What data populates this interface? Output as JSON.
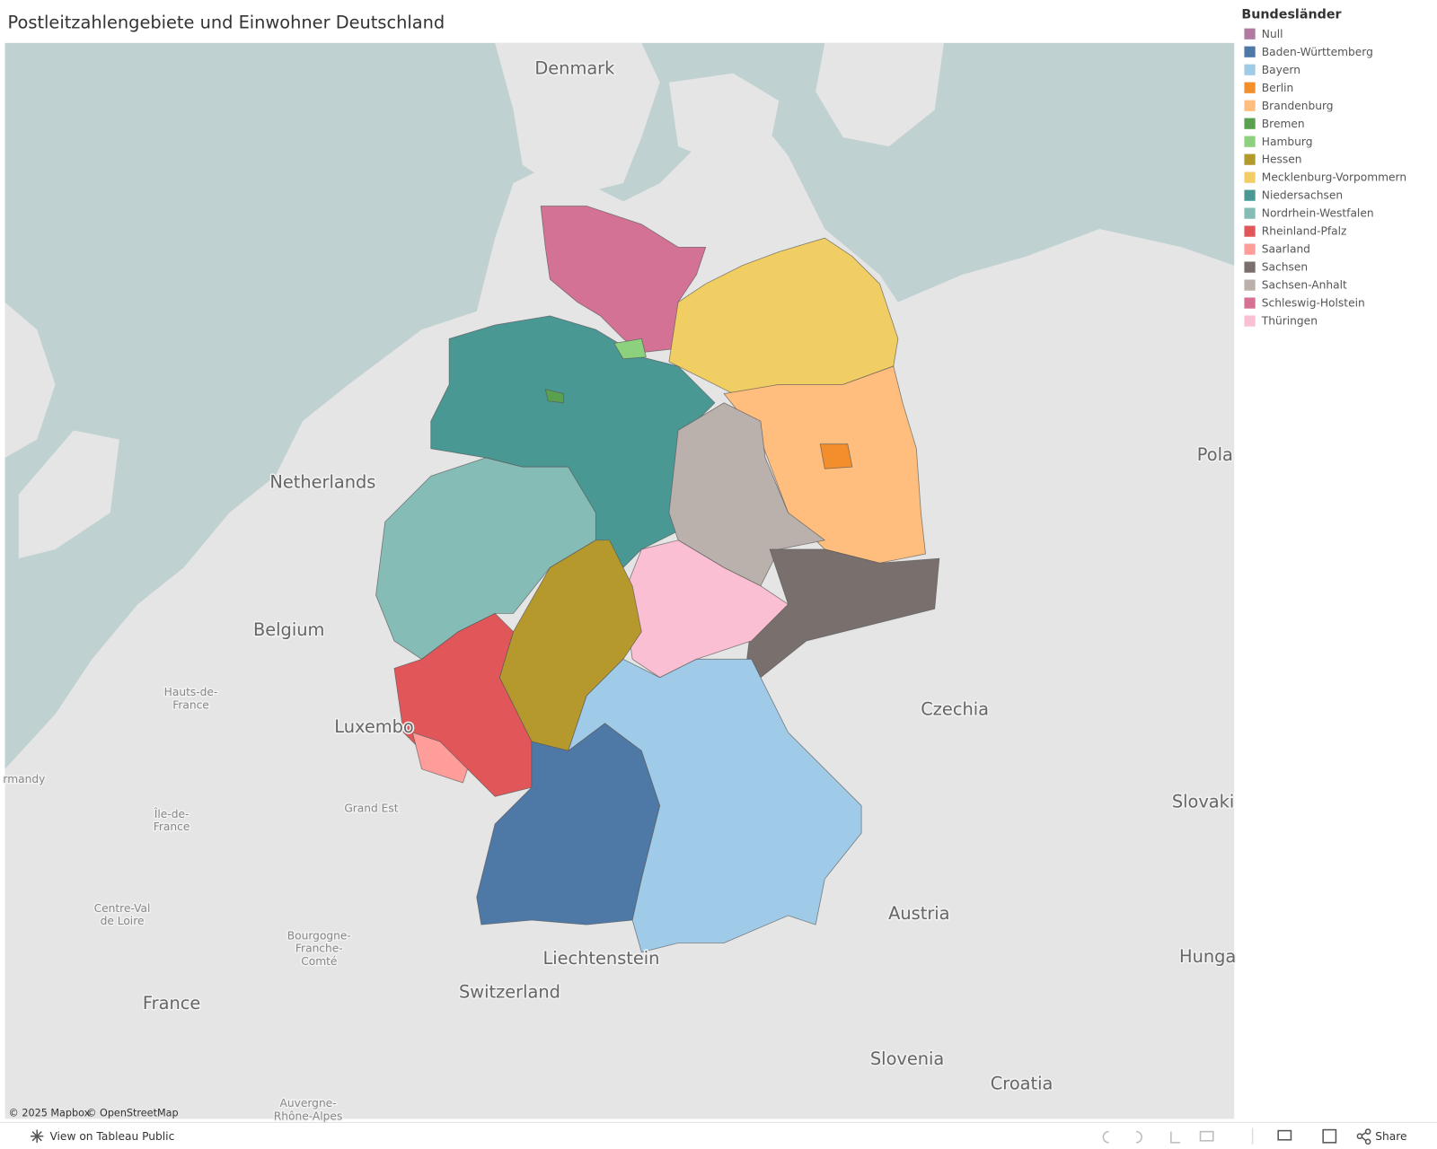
{
  "title": "Postleitzahlengebiete und Einwohner Deutschland",
  "legend": {
    "title": "Bundesländer",
    "items": [
      {
        "name": "Null",
        "color": "#b07aa1"
      },
      {
        "name": "Baden-Württemberg",
        "color": "#4e79a7"
      },
      {
        "name": "Bayern",
        "color": "#a0cbe8"
      },
      {
        "name": "Berlin",
        "color": "#f28e2b"
      },
      {
        "name": "Brandenburg",
        "color": "#ffbe7d"
      },
      {
        "name": "Bremen",
        "color": "#59a14f"
      },
      {
        "name": "Hamburg",
        "color": "#8cd17d"
      },
      {
        "name": "Hessen",
        "color": "#b6992d"
      },
      {
        "name": "Mecklenburg-Vorpommern",
        "color": "#f1ce63"
      },
      {
        "name": "Niedersachsen",
        "color": "#499894"
      },
      {
        "name": "Nordrhein-Westfalen",
        "color": "#86bcb6"
      },
      {
        "name": "Rheinland-Pfalz",
        "color": "#e15759"
      },
      {
        "name": "Saarland",
        "color": "#ff9d9a"
      },
      {
        "name": "Sachsen",
        "color": "#79706e"
      },
      {
        "name": "Sachsen-Anhalt",
        "color": "#bab0ac"
      },
      {
        "name": "Schleswig-Holstein",
        "color": "#d37295"
      },
      {
        "name": "Thüringen",
        "color": "#fabfd2"
      }
    ]
  },
  "map_labels": [
    {
      "lines": [
        "Denmark"
      ]
    },
    {
      "lines": [
        "Netherlands"
      ]
    },
    {
      "lines": [
        "Belgium"
      ]
    },
    {
      "lines": [
        "Luxembo"
      ]
    },
    {
      "lines": [
        "Hauts-de-",
        "France"
      ]
    },
    {
      "lines": [
        "Grand Est"
      ]
    },
    {
      "lines": [
        "Île-de-",
        "France"
      ]
    },
    {
      "lines": [
        "rmandy"
      ]
    },
    {
      "lines": [
        "Centre-Val",
        "de Loire"
      ]
    },
    {
      "lines": [
        "Bourgogne-",
        "Franche-",
        "Comté"
      ]
    },
    {
      "lines": [
        "France"
      ]
    },
    {
      "lines": [
        "Liechtenstein"
      ]
    },
    {
      "lines": [
        "Switzerland"
      ]
    },
    {
      "lines": [
        "Austria"
      ]
    },
    {
      "lines": [
        "Czechia"
      ]
    },
    {
      "lines": [
        "Slovenia"
      ]
    },
    {
      "lines": [
        "Croatia"
      ]
    },
    {
      "lines": [
        "Pola"
      ]
    },
    {
      "lines": [
        "Slovaki"
      ]
    },
    {
      "lines": [
        "Hunga"
      ]
    },
    {
      "lines": [
        "Auvergne-",
        "Rhône-Alpes"
      ]
    }
  ],
  "attribution": [
    "© 2025 Mapbox",
    "© OpenStreetMap"
  ],
  "toolbar": {
    "view_link": "View on Tableau Public",
    "share": "Share"
  }
}
